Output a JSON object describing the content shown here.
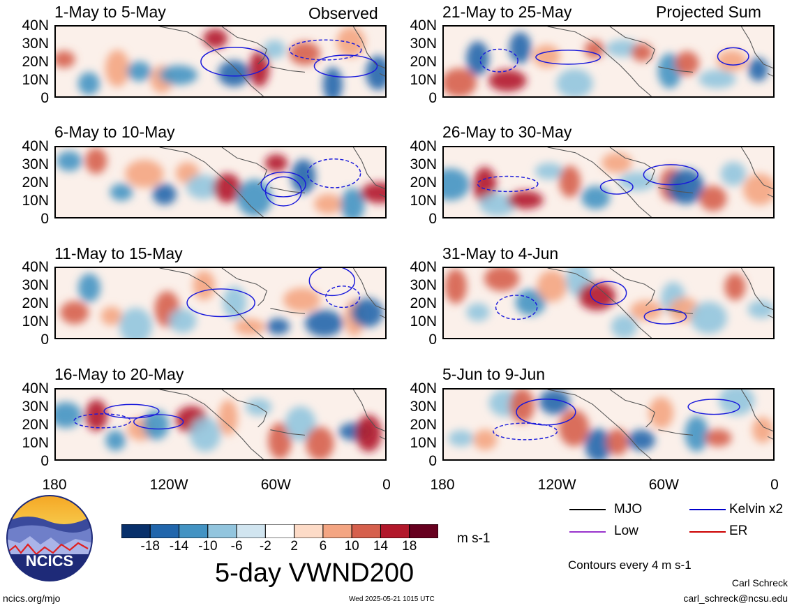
{
  "panels_left_tag": "Observed",
  "panels_right_tag": "Projected Sum",
  "panels": [
    {
      "title": "1-May to 5-May",
      "col": 0,
      "row": 0
    },
    {
      "title": "6-May to 10-May",
      "col": 0,
      "row": 1
    },
    {
      "title": "11-May to 15-May",
      "col": 0,
      "row": 2
    },
    {
      "title": "16-May to 20-May",
      "col": 0,
      "row": 3
    },
    {
      "title": "21-May to 25-May",
      "col": 1,
      "row": 0
    },
    {
      "title": "26-May to 30-May",
      "col": 1,
      "row": 1
    },
    {
      "title": "31-May to 4-Jun",
      "col": 1,
      "row": 2
    },
    {
      "title": "5-Jun to 9-Jun",
      "col": 1,
      "row": 3
    }
  ],
  "y_ticks": [
    "40N",
    "30N",
    "20N",
    "10N",
    "0"
  ],
  "x_ticks": [
    "180",
    "120W",
    "60W",
    "0"
  ],
  "colorbar": {
    "tick_labels": [
      "-18",
      "-14",
      "-10",
      "-6",
      "-2",
      "2",
      "6",
      "10",
      "14",
      "18"
    ],
    "colors": [
      "#08306b",
      "#2166ac",
      "#4393c3",
      "#92c5de",
      "#d1e5f0",
      "#ffffff",
      "#fddbc7",
      "#f4a582",
      "#d6604d",
      "#b2182b",
      "#67001f"
    ],
    "unit": "m s-1"
  },
  "title": "5-day VWND200",
  "legend": {
    "items": [
      {
        "label": "MJO",
        "color": "#000000"
      },
      {
        "label": "Kelvin x2",
        "color": "#0000cc"
      },
      {
        "label": "Low",
        "color": "#9933cc"
      },
      {
        "label": "ER",
        "color": "#cc0000"
      }
    ],
    "contour_note": "Contours every 4 m s-1"
  },
  "logo_text": "NCICS",
  "footer": {
    "url": "ncics.org/mjo",
    "timestamp": "Wed 2025-05-21 1015 UTC",
    "author": "Carl Schreck",
    "email": "carl_schreck@ncsu.edu"
  }
}
